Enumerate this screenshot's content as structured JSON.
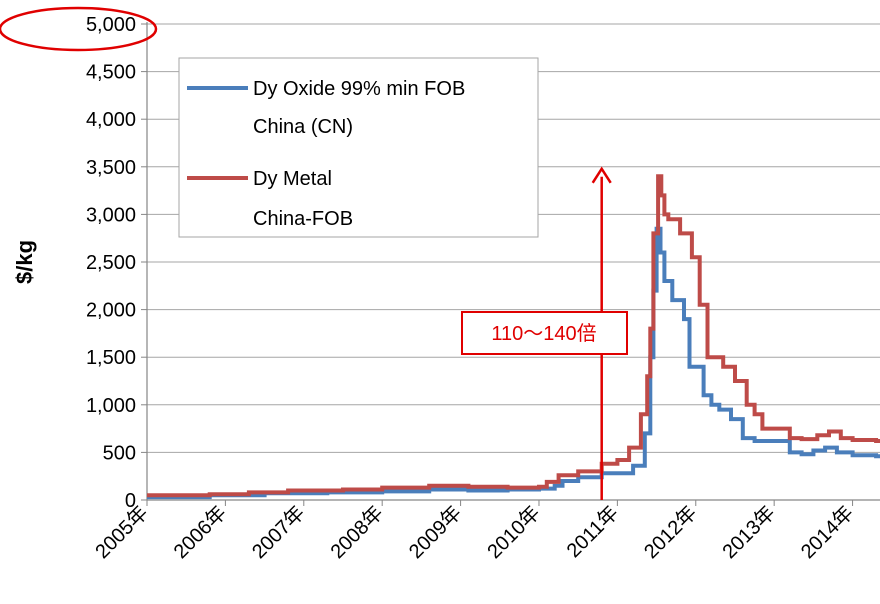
{
  "chart_data": {
    "type": "line",
    "title": "",
    "ylabel": "$/kg",
    "xlabel": "",
    "ylim": [
      0,
      5000
    ],
    "y_ticks": [
      "0",
      "500",
      "1,000",
      "1,500",
      "2,000",
      "2,500",
      "3,000",
      "3,500",
      "4,000",
      "4,500",
      "5,000"
    ],
    "x_ticks": [
      "2005年",
      "2006年",
      "2007年",
      "2008年",
      "2009年",
      "2010年",
      "2011年",
      "2012年",
      "2013年",
      "2014年"
    ],
    "grid": "horizontal",
    "legend_position": "top-left",
    "highlighted_tick": "5,000",
    "series": [
      {
        "name": "Dy Oxide 99% min FOB China (CN)",
        "legend_lines": [
          "Dy Oxide 99% min FOB",
          "China (CN)"
        ],
        "color": "#4a7ebb",
        "x": [
          2005.0,
          2005.8,
          2006.5,
          2007.3,
          2008.0,
          2008.6,
          2009.1,
          2009.6,
          2010.0,
          2010.2,
          2010.3,
          2010.5,
          2010.8,
          2011.0,
          2011.2,
          2011.35,
          2011.42,
          2011.46,
          2011.5,
          2011.55,
          2011.6,
          2011.7,
          2011.85,
          2011.92,
          2012.1,
          2012.2,
          2012.3,
          2012.45,
          2012.6,
          2012.75,
          2012.9,
          2013.0,
          2013.2,
          2013.35,
          2013.5,
          2013.65,
          2013.8,
          2014.0,
          2014.3
        ],
        "values": [
          30,
          50,
          70,
          80,
          90,
          110,
          100,
          110,
          120,
          150,
          200,
          240,
          280,
          280,
          360,
          700,
          1500,
          2200,
          2850,
          2600,
          2300,
          2100,
          1900,
          1400,
          1100,
          1000,
          950,
          850,
          650,
          620,
          620,
          620,
          500,
          480,
          520,
          550,
          500,
          470,
          460
        ]
      },
      {
        "name": "Dy Metal China-FOB",
        "legend_lines": [
          "Dy Metal",
          "China-FOB"
        ],
        "color": "#be4b48",
        "x": [
          2005.0,
          2005.8,
          2006.3,
          2006.8,
          2007.5,
          2008.0,
          2008.6,
          2009.1,
          2009.6,
          2010.0,
          2010.1,
          2010.25,
          2010.5,
          2010.8,
          2011.0,
          2011.15,
          2011.3,
          2011.38,
          2011.42,
          2011.46,
          2011.52,
          2011.56,
          2011.6,
          2011.65,
          2011.8,
          2011.95,
          2012.05,
          2012.15,
          2012.35,
          2012.5,
          2012.65,
          2012.75,
          2012.85,
          2013.0,
          2013.2,
          2013.35,
          2013.55,
          2013.7,
          2013.85,
          2014.0,
          2014.3
        ],
        "values": [
          50,
          60,
          80,
          100,
          110,
          130,
          150,
          140,
          130,
          140,
          190,
          260,
          300,
          380,
          420,
          550,
          900,
          1300,
          1800,
          2800,
          3400,
          3200,
          3000,
          2950,
          2800,
          2550,
          2050,
          1500,
          1400,
          1250,
          1000,
          900,
          750,
          750,
          650,
          640,
          680,
          720,
          650,
          630,
          620
        ]
      }
    ],
    "annotation": {
      "label": "110～140倍",
      "arrow_x": 2010.8,
      "arrow_from": 0,
      "arrow_to": 3500,
      "color": "#e00000"
    }
  }
}
